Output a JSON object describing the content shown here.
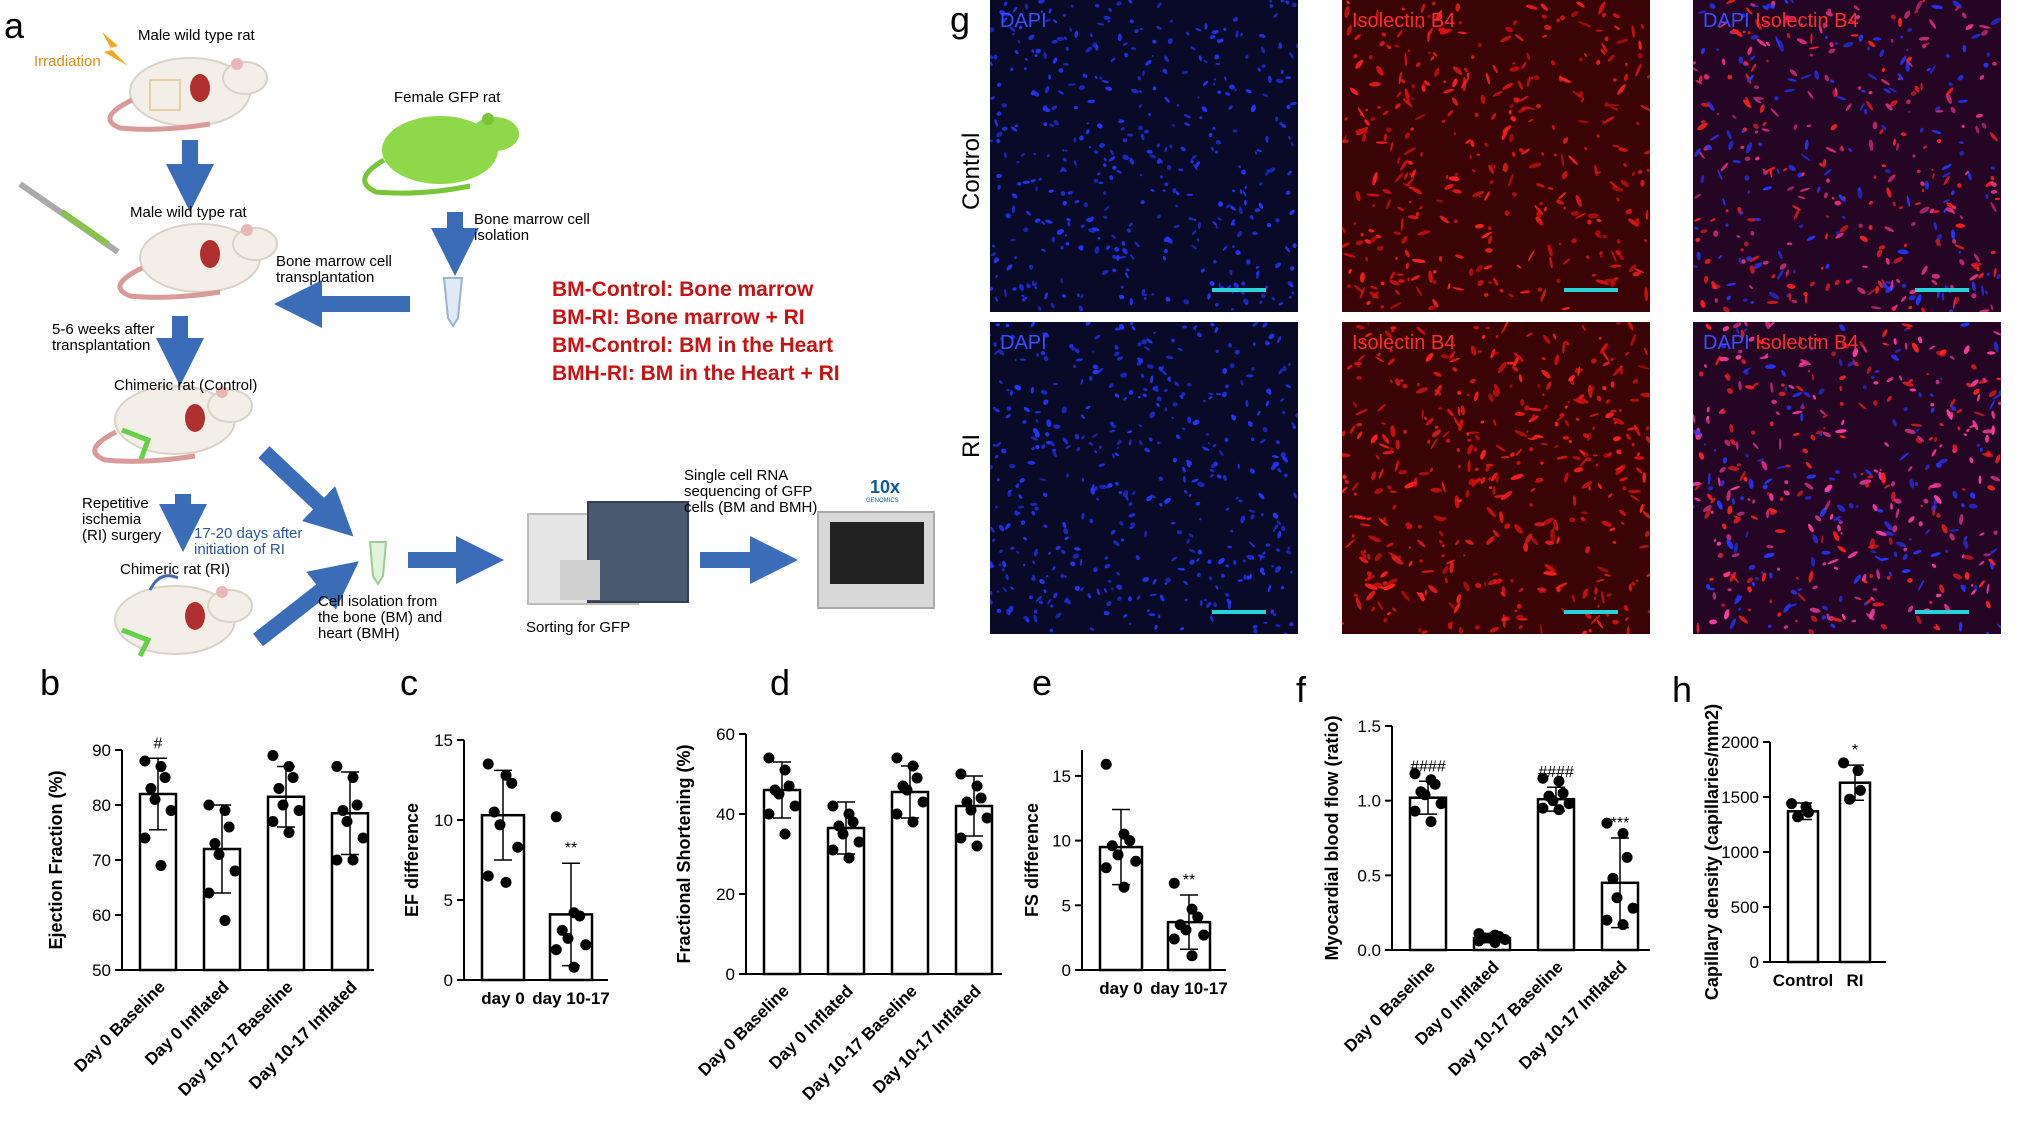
{
  "panels": {
    "a": "a",
    "b": "b",
    "c": "c",
    "d": "d",
    "e": "e",
    "f": "f",
    "g": "g",
    "h": "h"
  },
  "schematic": {
    "irradiation": "Irradiation",
    "rat_top": "Male wild type rat",
    "rat_gfp": "Female GFP rat",
    "rat_mid": "Male wild type rat",
    "bm_isolation_1": "Bone marrow cell",
    "bm_isolation_2": "isolation",
    "bm_transplant_1": "Bone marrow cell",
    "bm_transplant_2": "transplantation",
    "weeks_1": "5-6 weeks after",
    "weeks_2": "transplantation",
    "chimeric_control": "Chimeric rat (Control)",
    "ri_surgery_1": "Repetitive",
    "ri_surgery_2": "ischemia",
    "ri_surgery_3": "(RI) surgery",
    "days_1": "17-20 days after",
    "days_2": "initiation of RI",
    "chimeric_ri": "Chimeric rat (RI)",
    "cell_iso_1": "Cell isolation from",
    "cell_iso_2": "the bone (BM) and",
    "cell_iso_3": "heart (BMH)",
    "sorting": "Sorting for GFP",
    "scrna_1": "Single cell RNA",
    "scrna_2": "sequencing of GFP",
    "scrna_3": "cells (BM and BMH)",
    "tenx": "10x",
    "tenx_sub": "GENOMICS",
    "legend": [
      "BM-Control: Bone marrow",
      "BM-RI: Bone marrow + RI",
      "BM-Control: BM in the  Heart",
      "BMH-RI: BM in the  Heart + RI"
    ],
    "colors": {
      "arrow": "#3a6cb8",
      "legend_text": "#cc1111",
      "gfp": "#8fd84a"
    }
  },
  "micrographs": {
    "row_labels": [
      "Control",
      "RI"
    ],
    "tags": [
      [
        "DAPI",
        "Isolectin B4",
        "DAPI Isolectin B4"
      ],
      [
        "DAPI",
        "Isolectin B4",
        "DAPI Isolectin B4"
      ]
    ],
    "tag_parts": {
      "dapi": "DAPI",
      "isolectin": "Isolectin B4"
    },
    "colors": {
      "dapi": "#2233ff",
      "isolectin": "#ff2a2a",
      "scale_bar": "#29d2d8"
    }
  },
  "chart_data": [
    {
      "panel": "b",
      "type": "bar",
      "ylabel": "Ejection Fraction (%)",
      "ylim": [
        50,
        90
      ],
      "yticks": [
        50,
        60,
        70,
        80,
        90
      ],
      "categories": [
        "Day 0 Baseline",
        "Day 0 Inflated",
        "Day 10-17 Baseline",
        "Day 10-17 Inflated"
      ],
      "values": [
        82,
        72,
        81.5,
        78.5
      ],
      "sd": [
        6.5,
        8,
        5.5,
        7.5
      ],
      "annotations": [
        "#",
        "",
        "",
        ""
      ],
      "points": [
        [
          88,
          87,
          85,
          83,
          81,
          79,
          74,
          69
        ],
        [
          80,
          79,
          76,
          73,
          71,
          68,
          64,
          59
        ],
        [
          89,
          87,
          85,
          83,
          80,
          79,
          77,
          75
        ],
        [
          87,
          85,
          80,
          79,
          77,
          74,
          70,
          70
        ]
      ]
    },
    {
      "panel": "c",
      "type": "bar",
      "ylabel": "EF difference",
      "ylim": [
        0,
        15
      ],
      "yticks": [
        0,
        5,
        10,
        15
      ],
      "categories": [
        "day 0",
        "day 10-17"
      ],
      "values": [
        10.3,
        4.1
      ],
      "sd": [
        2.8,
        3.2
      ],
      "annotations": [
        "",
        "**"
      ],
      "points": [
        [
          13.5,
          12.8,
          12.3,
          10.5,
          9.7,
          8.3,
          6.5,
          6.1
        ],
        [
          10.2,
          4.2,
          4,
          3.1,
          2.6,
          2.2,
          1.9,
          0.8
        ]
      ]
    },
    {
      "panel": "d",
      "type": "bar",
      "ylabel": "Fractional Shortening (%)",
      "ylim": [
        0,
        60
      ],
      "yticks": [
        0,
        20,
        40,
        60
      ],
      "categories": [
        "Day 0 Baseline",
        "Day 0 Inflated",
        "Day 10-17 Baseline",
        "Day 10-17 Inflated"
      ],
      "values": [
        46,
        36.5,
        45.5,
        42
      ],
      "sd": [
        7,
        6.5,
        6.5,
        7.5
      ],
      "annotations": [
        "",
        "",
        "",
        ""
      ],
      "points": [
        [
          54,
          51,
          47,
          46,
          45,
          42,
          40,
          35
        ],
        [
          42,
          40,
          38,
          37,
          35,
          33,
          31,
          29
        ],
        [
          54,
          52,
          49,
          47,
          46,
          43,
          40,
          38
        ],
        [
          50,
          47,
          44,
          43,
          41,
          39,
          34,
          32
        ]
      ]
    },
    {
      "panel": "e",
      "type": "bar",
      "ylabel": "FS difference",
      "ylim": [
        0,
        17
      ],
      "yticks": [
        0,
        5,
        10,
        15
      ],
      "categories": [
        "day 0",
        "day 10-17"
      ],
      "values": [
        9.5,
        3.7
      ],
      "sd": [
        2.9,
        2.1
      ],
      "annotations": [
        "",
        "**"
      ],
      "points": [
        [
          15.9,
          10.5,
          10,
          9.6,
          8.9,
          8.4,
          7.9,
          6.4
        ],
        [
          6.7,
          4.7,
          4.1,
          3.5,
          3.1,
          2.7,
          2.4,
          1.1
        ]
      ]
    },
    {
      "panel": "f",
      "type": "bar",
      "ylabel": "Myocardial blood flow (ratio)",
      "ylim": [
        0,
        1.5
      ],
      "yticks": [
        0.0,
        0.5,
        1.0,
        1.5
      ],
      "categories": [
        "Day 0 Baseline",
        "Day 0 Inflated",
        "Day 10-17 Baseline",
        "Day 10-17 Inflated"
      ],
      "values": [
        1.02,
        0.08,
        1.01,
        0.45
      ],
      "sd": [
        0.11,
        0.02,
        0.08,
        0.3
      ],
      "annotations": [
        "####",
        "",
        "####",
        "***"
      ],
      "points": [
        [
          1.18,
          1.14,
          1.11,
          1.06,
          1.04,
          0.98,
          0.93,
          0.86
        ],
        [
          0.11,
          0.1,
          0.09,
          0.08,
          0.08,
          0.07,
          0.06,
          0.05
        ],
        [
          1.15,
          1.13,
          1.05,
          1.03,
          1.0,
          0.98,
          0.95,
          0.94
        ],
        [
          0.85,
          0.78,
          0.62,
          0.48,
          0.35,
          0.28,
          0.2,
          0.17
        ]
      ]
    },
    {
      "panel": "h",
      "type": "bar",
      "ylabel": "Capillary density (capillaries/mm2)",
      "ylim": [
        0,
        2000
      ],
      "yticks": [
        0,
        500,
        1000,
        1500,
        2000
      ],
      "categories": [
        "Control",
        "RI"
      ],
      "values": [
        1370,
        1630
      ],
      "sd": [
        75,
        160
      ],
      "annotations": [
        "",
        "*"
      ],
      "points": [
        [
          1440,
          1410,
          1360,
          1320
        ],
        [
          1810,
          1740,
          1560,
          1480
        ]
      ]
    }
  ]
}
